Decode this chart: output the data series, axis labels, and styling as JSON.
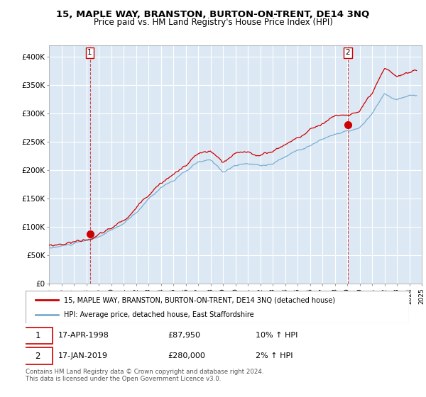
{
  "title": "15, MAPLE WAY, BRANSTON, BURTON-ON-TRENT, DE14 3NQ",
  "subtitle": "Price paid vs. HM Land Registry's House Price Index (HPI)",
  "ylabel_ticks": [
    "£0",
    "£50K",
    "£100K",
    "£150K",
    "£200K",
    "£250K",
    "£300K",
    "£350K",
    "£400K"
  ],
  "ytick_values": [
    0,
    50000,
    100000,
    150000,
    200000,
    250000,
    300000,
    350000,
    400000
  ],
  "ylim": [
    0,
    420000
  ],
  "xlim_start": 1995.25,
  "xlim_end": 2025.0,
  "transaction1": {
    "date_num": 1998.29,
    "price": 87950,
    "label": "1"
  },
  "transaction2": {
    "date_num": 2019.04,
    "price": 280000,
    "label": "2"
  },
  "legend_line1": "15, MAPLE WAY, BRANSTON, BURTON-ON-TRENT, DE14 3NQ (detached house)",
  "legend_line2": "HPI: Average price, detached house, East Staffordshire",
  "annotation1_date": "17-APR-1998",
  "annotation1_price": "£87,950",
  "annotation1_hpi": "10% ↑ HPI",
  "annotation2_date": "17-JAN-2019",
  "annotation2_price": "£280,000",
  "annotation2_hpi": "2% ↑ HPI",
  "footer": "Contains HM Land Registry data © Crown copyright and database right 2024.\nThis data is licensed under the Open Government Licence v3.0.",
  "color_red": "#cc0000",
  "color_blue": "#7aadcf",
  "bg_plot": "#dce9f5",
  "background_color": "#ffffff",
  "grid_color": "#ffffff"
}
